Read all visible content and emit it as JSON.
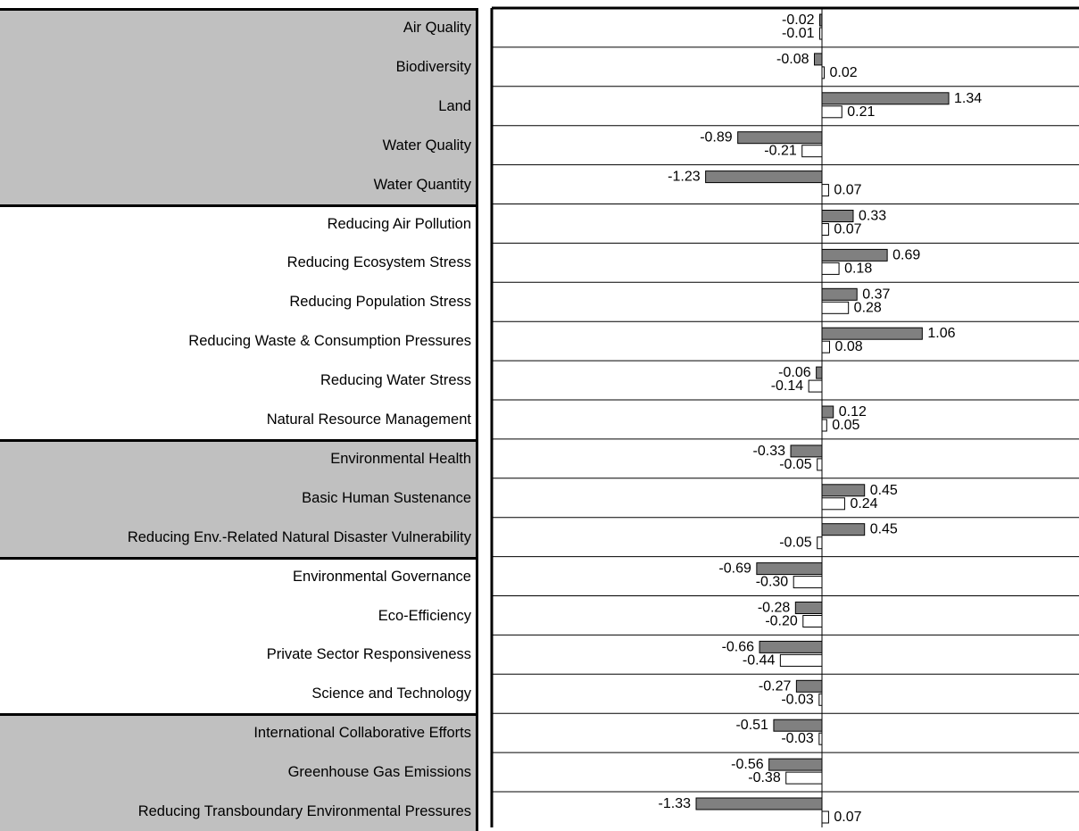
{
  "chart_data": {
    "type": "bar",
    "orientation": "horizontal",
    "grid": false,
    "categories": [
      "Air Quality",
      "Biodiversity",
      "Land",
      "Water Quality",
      "Water Quantity",
      "Reducing Air Pollution",
      "Reducing Ecosystem Stress",
      "Reducing Population Stress",
      "Reducing Waste & Consumption Pressures",
      "Reducing Water Stress",
      "Natural Resource Management",
      "Environmental Health",
      "Basic Human Sustenance",
      "Reducing Env.-Related Natural Disaster Vulnerability",
      "Environmental Governance",
      "Eco-Efficiency",
      "Private Sector Responsiveness",
      "Science and Technology",
      "International Collaborative Efforts",
      "Greenhouse Gas Emissions",
      "Reducing Transboundary Environmental Pressures"
    ],
    "series": [
      {
        "color": "#808080",
        "values": [
          -0.02,
          -0.08,
          1.34,
          -0.89,
          -1.23,
          0.33,
          0.69,
          0.37,
          1.06,
          -0.06,
          0.12,
          -0.33,
          0.45,
          0.45,
          -0.69,
          -0.28,
          -0.66,
          -0.27,
          -0.51,
          -0.56,
          -1.33
        ]
      },
      {
        "color": "#ffffff",
        "values": [
          -0.01,
          0.02,
          0.21,
          -0.21,
          0.07,
          0.07,
          0.18,
          0.28,
          0.08,
          -0.14,
          0.05,
          -0.05,
          0.24,
          -0.05,
          -0.3,
          -0.2,
          -0.44,
          -0.03,
          -0.03,
          -0.38,
          0.07
        ]
      }
    ],
    "value_labels": [
      [
        "-0.02",
        "-0.01"
      ],
      [
        "-0.08",
        "0.02"
      ],
      [
        "1.34",
        "0.21"
      ],
      [
        "-0.89",
        "-0.21"
      ],
      [
        "-1.23",
        "0.07"
      ],
      [
        "0.33",
        "0.07"
      ],
      [
        "0.69",
        "0.18"
      ],
      [
        "0.37",
        "0.28"
      ],
      [
        "1.06",
        "0.08"
      ],
      [
        "-0.06",
        "-0.14"
      ],
      [
        "0.12",
        "0.05"
      ],
      [
        "-0.33",
        "-0.05"
      ],
      [
        "0.45",
        "0.24"
      ],
      [
        "0.45",
        "-0.05"
      ],
      [
        "-0.69",
        "-0.30"
      ],
      [
        "-0.28",
        "-0.20"
      ],
      [
        "-0.66",
        "-0.44"
      ],
      [
        "-0.27",
        "-0.03"
      ],
      [
        "-0.51",
        "-0.03"
      ],
      [
        "-0.56",
        "-0.38"
      ],
      [
        "-1.33",
        "0.07"
      ]
    ],
    "groups": [
      {
        "start": 0,
        "end": 4,
        "shaded": true
      },
      {
        "start": 5,
        "end": 10,
        "shaded": false
      },
      {
        "start": 11,
        "end": 13,
        "shaded": true
      },
      {
        "start": 14,
        "end": 17,
        "shaded": false
      },
      {
        "start": 18,
        "end": 20,
        "shaded": true
      }
    ],
    "xlim": [
      -1.55,
      1.55
    ]
  }
}
